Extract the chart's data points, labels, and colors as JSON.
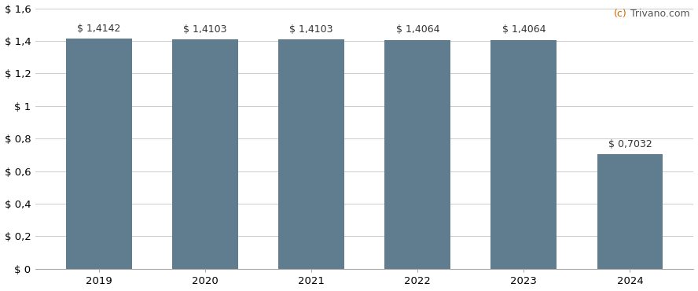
{
  "categories": [
    "2019",
    "2020",
    "2021",
    "2022",
    "2023",
    "2024"
  ],
  "values": [
    1.4142,
    1.4103,
    1.4103,
    1.4064,
    1.4064,
    0.7032
  ],
  "labels": [
    "$ 1,4142",
    "$ 1,4103",
    "$ 1,4103",
    "$ 1,4064",
    "$ 1,4064",
    "$ 0,7032"
  ],
  "bar_color": "#5f7d8e",
  "background_color": "#ffffff",
  "grid_color": "#cccccc",
  "ylim": [
    0,
    1.6
  ],
  "yticks": [
    0,
    0.2,
    0.4,
    0.6,
    0.8,
    1.0,
    1.2,
    1.4,
    1.6
  ],
  "ytick_labels": [
    "$ 0",
    "$ 0,2",
    "$ 0,4",
    "$ 0,6",
    "$ 0,8",
    "$ 1",
    "$ 1,2",
    "$ 1,4",
    "$ 1,6"
  ],
  "watermark_c": "(c)",
  "watermark_rest": " Trivano.com",
  "watermark_color_c": "#cc6600",
  "watermark_color_rest": "#555555",
  "label_fontsize": 9.0,
  "tick_fontsize": 9.5,
  "watermark_fontsize": 9.0,
  "bar_width": 0.62
}
